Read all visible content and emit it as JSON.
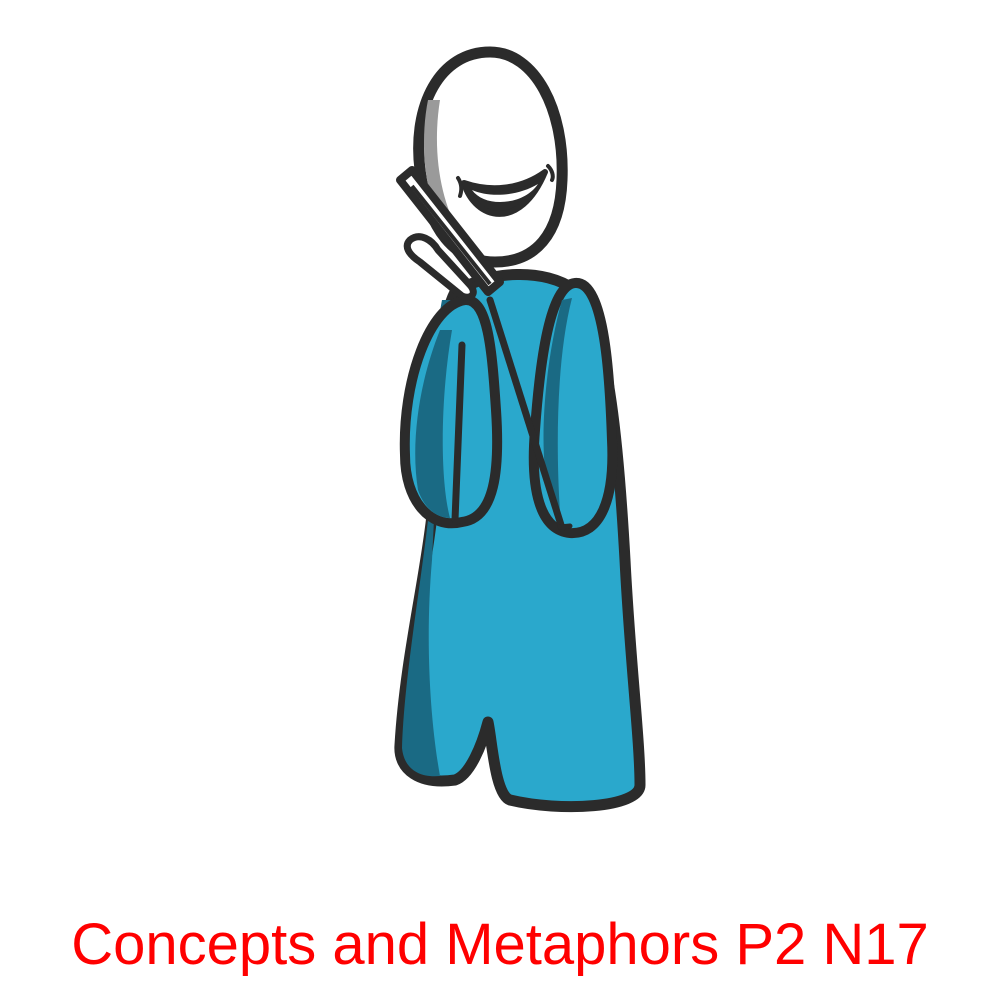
{
  "caption": {
    "text": "Concepts and Metaphors P2 N17",
    "color": "#ff0000"
  },
  "illustration": {
    "subject": "smiling stick figure talking on a mobile phone",
    "colors": {
      "outline": "#2b2b2b",
      "body": "#2aa8cc",
      "body_shadow": "#1a6a84",
      "head": "#ffffff",
      "head_shadow": "#9a9a9a",
      "phone": "#ffffff"
    }
  }
}
